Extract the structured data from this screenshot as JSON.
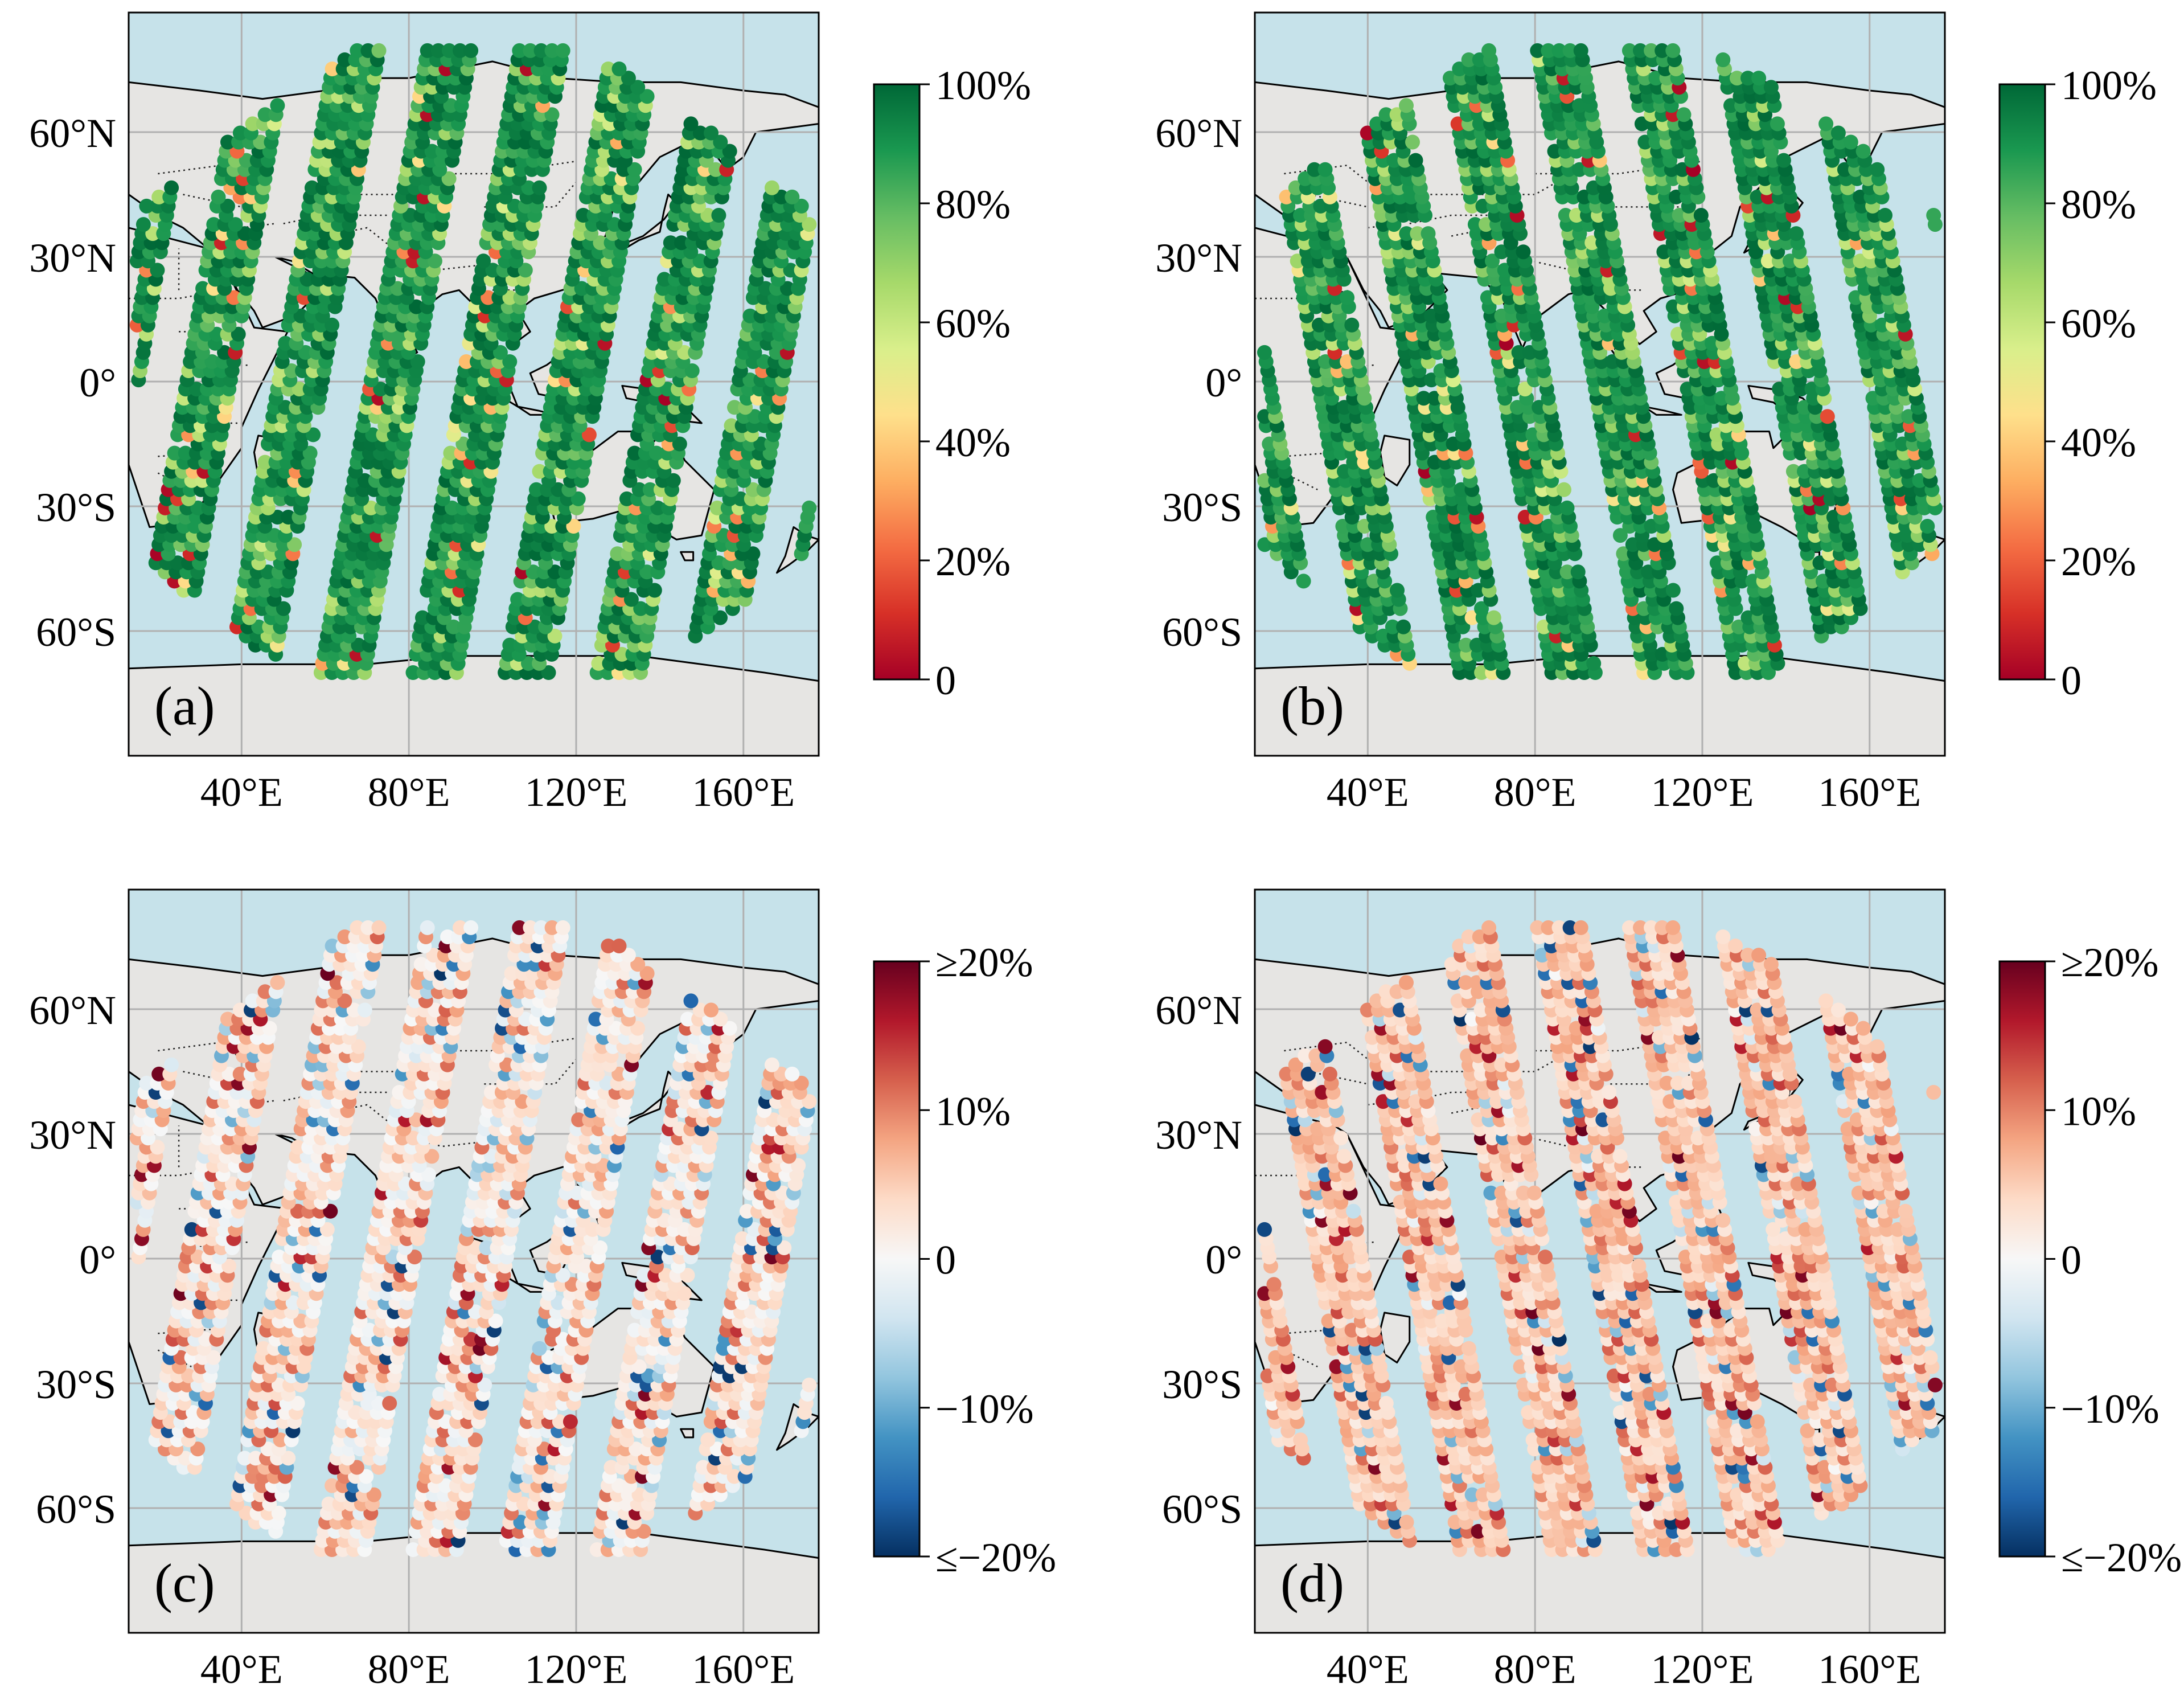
{
  "panels": [
    {
      "id": "a",
      "label": "(a)",
      "scale": "sequential",
      "tracks": "descending"
    },
    {
      "id": "b",
      "label": "(b)",
      "scale": "sequential",
      "tracks": "ascending"
    },
    {
      "id": "c",
      "label": "(c)",
      "scale": "diverging",
      "tracks": "descending"
    },
    {
      "id": "d",
      "label": "(d)",
      "scale": "diverging",
      "tracks": "ascending"
    }
  ],
  "axes": {
    "lon_ticks": [
      40,
      80,
      120,
      160
    ],
    "lon_tick_labels": [
      "40°E",
      "80°E",
      "120°E",
      "160°E"
    ],
    "lat_ticks": [
      60,
      30,
      0,
      -30,
      -60
    ],
    "lat_tick_labels": [
      "60°N",
      "30°N",
      "0°",
      "30°S",
      "60°S"
    ],
    "lon_range": [
      13,
      178
    ],
    "lat_range": [
      -90,
      90
    ],
    "grid": true
  },
  "colorbars": {
    "sequential": {
      "tick_values": [
        0,
        20,
        40,
        60,
        80,
        100
      ],
      "tick_labels": [
        "0",
        "20%",
        "40%",
        "60%",
        "80%",
        "100%"
      ],
      "range": [
        0,
        100
      ],
      "colors": [
        "#a50026",
        "#d73027",
        "#f46d43",
        "#fdae61",
        "#fee08b",
        "#d9ef8b",
        "#a6d96a",
        "#66bd63",
        "#1a9850",
        "#006837"
      ]
    },
    "diverging": {
      "tick_values": [
        20,
        10,
        0,
        -10,
        -20
      ],
      "tick_labels": [
        "≥20%",
        "10%",
        "0",
        "−10%",
        "≤−20%"
      ],
      "range": [
        -20,
        20
      ],
      "colors": [
        "#053061",
        "#2166ac",
        "#4393c3",
        "#92c5de",
        "#d1e5f0",
        "#f7f7f7",
        "#fddbc7",
        "#f4a582",
        "#d6604d",
        "#b2182b",
        "#67001f"
      ]
    }
  },
  "map_colors": {
    "ocean": "#c6e2ea",
    "land": "#e6e5e3",
    "coast": "#000000",
    "grid": "#b0b0b0"
  }
}
